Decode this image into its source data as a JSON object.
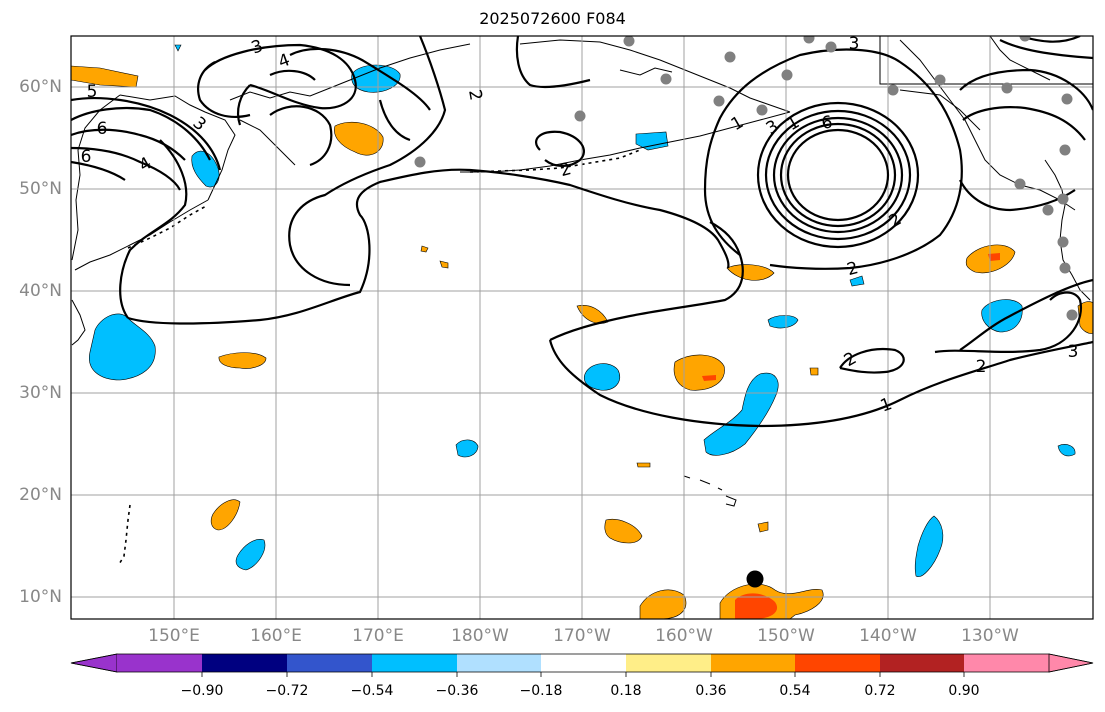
{
  "title": "2025072600 F084",
  "latitude_labels": [
    "60°N",
    "50°N",
    "40°N",
    "30°N",
    "20°N",
    "10°N"
  ],
  "longitude_labels": [
    "150°E",
    "160°E",
    "170°E",
    "180°W",
    "170°W",
    "160°W",
    "150°W",
    "140°W",
    "130°W"
  ],
  "colorbar": {
    "tick_labels": [
      "−0.90",
      "−0.72",
      "−0.54",
      "−0.36",
      "−0.18",
      "0.18",
      "0.36",
      "0.54",
      "0.72",
      "0.90"
    ],
    "colors": [
      "#9933cc",
      "#000080",
      "#3355cc",
      "#00bfff",
      "#b0e0ff",
      "#ffffff",
      "#ffee88",
      "#ffa500",
      "#ff4500",
      "#b22222",
      "#ff88aa"
    ]
  },
  "contour_labels": [
    "3",
    "4",
    "2",
    "6",
    "4",
    "5",
    "6",
    "2",
    "3",
    "3",
    "1",
    "6",
    "2",
    "2",
    "2",
    "2",
    "1",
    "3",
    "3",
    "1"
  ],
  "accent_colors": {
    "positive_anomaly": "#ffa500",
    "strong_positive_anomaly": "#ff4500",
    "negative_anomaly": "#00bfff",
    "station_marker": "#808080",
    "center_marker": "#000000"
  }
}
